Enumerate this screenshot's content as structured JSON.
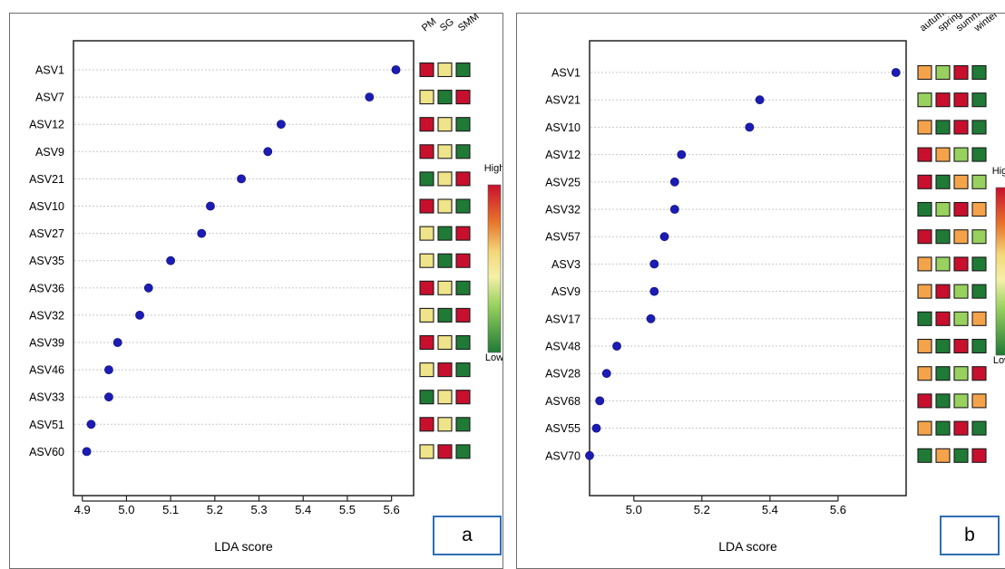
{
  "chart_data": [
    {
      "type": "scatter",
      "panel_label": "a",
      "xlabel": "LDA score",
      "ylabel": "",
      "xlim": [
        4.88,
        5.65
      ],
      "xticks": [
        "4.9",
        "5.0",
        "5.1",
        "5.2",
        "5.3",
        "5.4",
        "5.5",
        "5.6"
      ],
      "categories": [
        "ASV1",
        "ASV7",
        "ASV12",
        "ASV9",
        "ASV21",
        "ASV10",
        "ASV27",
        "ASV35",
        "ASV36",
        "ASV32",
        "ASV39",
        "ASV46",
        "ASV33",
        "ASV51",
        "ASV60"
      ],
      "values": [
        5.61,
        5.55,
        5.35,
        5.32,
        5.26,
        5.19,
        5.17,
        5.1,
        5.05,
        5.03,
        4.98,
        4.96,
        4.96,
        4.92,
        4.91
      ],
      "point_color": "#1c1cb4",
      "grid": true,
      "heatmap": {
        "columns": [
          "PM",
          "SG",
          "SMM"
        ],
        "cells": [
          [
            "high",
            "mid",
            "low"
          ],
          [
            "mid",
            "low",
            "high"
          ],
          [
            "high",
            "mid",
            "low"
          ],
          [
            "high",
            "mid",
            "low"
          ],
          [
            "low",
            "mid",
            "high"
          ],
          [
            "high",
            "mid",
            "low"
          ],
          [
            "mid",
            "low",
            "high"
          ],
          [
            "mid",
            "low",
            "high"
          ],
          [
            "high",
            "mid",
            "low"
          ],
          [
            "mid",
            "low",
            "high"
          ],
          [
            "high",
            "mid",
            "low"
          ],
          [
            "mid",
            "high",
            "low"
          ],
          [
            "low",
            "mid",
            "high"
          ],
          [
            "high",
            "mid",
            "low"
          ],
          [
            "mid",
            "high",
            "low"
          ]
        ]
      },
      "legend": {
        "high_label": "High",
        "low_label": "Low",
        "placement": "right"
      }
    },
    {
      "type": "scatter",
      "panel_label": "b",
      "xlabel": "LDA score",
      "ylabel": "",
      "xlim": [
        4.87,
        5.8
      ],
      "xticks": [
        "5.0",
        "5.2",
        "5.4",
        "5.6"
      ],
      "categories": [
        "ASV1",
        "ASV21",
        "ASV10",
        "ASV12",
        "ASV25",
        "ASV32",
        "ASV57",
        "ASV3",
        "ASV9",
        "ASV17",
        "ASV48",
        "ASV28",
        "ASV68",
        "ASV55",
        "ASV70"
      ],
      "values": [
        5.77,
        5.37,
        5.34,
        5.14,
        5.12,
        5.12,
        5.09,
        5.06,
        5.06,
        5.05,
        4.95,
        4.92,
        4.9,
        4.89,
        4.87
      ],
      "point_color": "#1c1cb4",
      "grid": true,
      "heatmap": {
        "columns": [
          "autumn",
          "spring",
          "summer",
          "winter"
        ],
        "cells": [
          [
            "orange",
            "lightgreen",
            "high",
            "low"
          ],
          [
            "lightgreen",
            "high",
            "high",
            "low"
          ],
          [
            "orange",
            "low",
            "high",
            "low"
          ],
          [
            "high",
            "orange",
            "lightgreen",
            "low"
          ],
          [
            "high",
            "low",
            "orange",
            "lightgreen"
          ],
          [
            "low",
            "lightgreen",
            "high",
            "orange"
          ],
          [
            "high",
            "low",
            "orange",
            "lightgreen"
          ],
          [
            "orange",
            "lightgreen",
            "high",
            "low"
          ],
          [
            "orange",
            "high",
            "lightgreen",
            "low"
          ],
          [
            "low",
            "high",
            "lightgreen",
            "orange"
          ],
          [
            "orange",
            "low",
            "high",
            "low"
          ],
          [
            "orange",
            "low",
            "lightgreen",
            "high"
          ],
          [
            "high",
            "low",
            "lightgreen",
            "orange"
          ],
          [
            "orange",
            "low",
            "high",
            "low"
          ],
          [
            "low",
            "orange",
            "low",
            "high"
          ]
        ]
      },
      "legend": {
        "high_label": "High",
        "low_label": "Low",
        "placement": "right"
      }
    }
  ],
  "colors": {
    "high": "#c8102e",
    "mid": "#f0e48a",
    "orange": "#f5a34a",
    "lightgreen": "#98d15e",
    "low": "#1f7a36",
    "point": "#1c1cb4",
    "panel_box_border": "#2f6db5"
  }
}
